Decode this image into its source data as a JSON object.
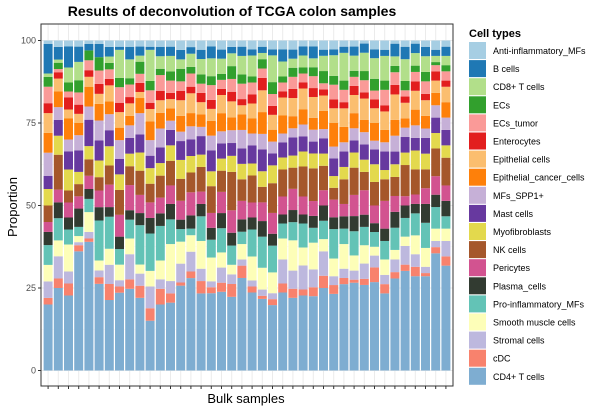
{
  "chart_data": {
    "type": "bar",
    "stacked": true,
    "title": "Results of deconvolution of TCGA colon samples",
    "xlabel": "Bulk samples",
    "ylabel": "Proportion",
    "ylim": [
      0,
      100
    ],
    "yticks": [
      0,
      25,
      50,
      75,
      100
    ],
    "grid": true,
    "legend_title": "Cell types",
    "legend_position": "right",
    "n_samples": 40,
    "series": [
      {
        "name": "CD4+ T cells",
        "color": "#7eadd1",
        "values": [
          20,
          26,
          25,
          39,
          39,
          26,
          22,
          25,
          26,
          24,
          16,
          21,
          22,
          27,
          28,
          25,
          26,
          26,
          23,
          30,
          26,
          23,
          22,
          26,
          24,
          25,
          25,
          27,
          26,
          28,
          29,
          28,
          30,
          25,
          29,
          32,
          30,
          30,
          38,
          34
        ]
      },
      {
        "name": "cDC",
        "color": "#f8826d",
        "values": [
          2,
          3,
          4,
          2,
          1,
          2,
          5,
          2,
          3,
          4,
          4,
          5,
          3,
          1,
          2,
          4,
          2,
          3,
          4,
          4,
          2,
          1,
          2,
          3,
          3,
          2,
          3,
          4,
          3,
          2,
          1,
          2,
          5,
          3,
          2,
          2,
          3,
          1,
          2,
          3
        ]
      },
      {
        "name": "Stromal cells",
        "color": "#bdb8de",
        "values": [
          5,
          7,
          4,
          1,
          2,
          2,
          6,
          2,
          8,
          4,
          7,
          3,
          4,
          6,
          6,
          4,
          2,
          5,
          3,
          2,
          2,
          2,
          2,
          8,
          6,
          8,
          6,
          8,
          3,
          3,
          3,
          5,
          4,
          3,
          4,
          6,
          4,
          2,
          2,
          5
        ]
      },
      {
        "name": "Smooth muscle cells",
        "color": "#fdfeb8",
        "values": [
          5,
          5,
          9,
          2,
          6,
          3,
          5,
          5,
          5,
          3,
          5,
          6,
          12,
          7,
          5,
          9,
          8,
          5,
          3,
          5,
          8,
          7,
          7,
          7,
          10,
          6,
          9,
          4,
          6,
          8,
          5,
          6,
          3,
          5,
          3,
          3,
          6,
          6,
          4,
          4
        ]
      },
      {
        "name": "Pro-inflammatory_MFs",
        "color": "#63c3b6",
        "values": [
          6,
          7,
          5,
          3,
          4,
          12,
          10,
          5,
          6,
          13,
          12,
          11,
          8,
          4,
          2,
          8,
          6,
          8,
          6,
          4,
          9,
          10,
          9,
          5,
          6,
          8,
          5,
          6,
          10,
          5,
          8,
          6,
          5,
          6,
          7,
          6,
          7,
          8,
          7,
          4
        ]
      },
      {
        "name": "Plasma_cells",
        "color": "#323b31",
        "values": [
          4,
          5,
          4,
          6,
          3,
          4,
          3,
          4,
          3,
          4,
          5,
          4,
          5,
          3,
          4,
          4,
          4,
          5,
          4,
          4,
          4,
          5,
          4,
          3,
          4,
          3,
          4,
          5,
          4,
          4,
          5,
          4,
          3,
          4,
          5,
          4,
          3,
          6,
          4,
          5
        ]
      },
      {
        "name": "Pericytes",
        "color": "#d25390",
        "values": [
          3,
          4,
          5,
          4,
          4,
          5,
          7,
          7,
          8,
          6,
          5,
          5,
          6,
          6,
          7,
          4,
          5,
          7,
          7,
          6,
          5,
          6,
          7,
          6,
          7,
          6,
          5,
          5,
          6,
          4,
          7,
          8,
          6,
          9,
          5,
          3,
          3,
          5,
          6,
          5
        ]
      },
      {
        "name": "NK cells",
        "color": "#a5572b",
        "values": [
          5,
          11,
          4,
          4,
          5,
          4,
          6,
          8,
          6,
          8,
          6,
          7,
          8,
          7,
          6,
          8,
          9,
          7,
          12,
          7,
          9,
          5,
          10,
          9,
          7,
          10,
          11,
          8,
          4,
          8,
          9,
          6,
          8,
          7,
          6,
          10,
          8,
          6,
          9,
          9
        ]
      },
      {
        "name": "Myofibroblasts",
        "color": "#e3d94d",
        "values": [
          5,
          6,
          7,
          4,
          4,
          5,
          6,
          5,
          4,
          6,
          5,
          4,
          5,
          6,
          5,
          4,
          5,
          4,
          5,
          5,
          4,
          5,
          6,
          4,
          4,
          5,
          5,
          4,
          4,
          4,
          5,
          4,
          6,
          3,
          4,
          4,
          6,
          5,
          5,
          4
        ]
      },
      {
        "name": "Mast cells",
        "color": "#67399f",
        "values": [
          4,
          5,
          6,
          7,
          8,
          6,
          5,
          5,
          5,
          6,
          4,
          5,
          5,
          6,
          5,
          6,
          7,
          5,
          4,
          5,
          6,
          7,
          4,
          5,
          6,
          5,
          4,
          5,
          6,
          5,
          4,
          5,
          5,
          6,
          4,
          5,
          4,
          5,
          5,
          5
        ]
      },
      {
        "name": "MFs_SPP1+",
        "color": "#c6b0d7",
        "values": [
          7,
          4,
          4,
          5,
          4,
          6,
          5,
          6,
          4,
          7,
          5,
          6,
          3,
          3,
          4,
          3,
          5,
          4,
          4,
          6,
          4,
          5,
          4,
          3,
          3,
          4,
          4,
          3,
          4,
          3,
          4,
          4,
          3,
          3,
          5,
          3,
          4,
          3,
          4,
          4
        ]
      },
      {
        "name": "Epithelial_cancer_cells",
        "color": "#fe800a",
        "values": [
          6,
          5,
          7,
          4,
          6,
          5,
          4,
          4,
          3,
          5,
          6,
          5,
          4,
          5,
          4,
          4,
          5,
          6,
          4,
          5,
          5,
          7,
          4,
          6,
          4,
          5,
          4,
          6,
          8,
          5,
          5,
          4,
          6,
          4,
          5,
          3,
          5,
          4,
          4,
          5
        ]
      },
      {
        "name": "Epithelial cells",
        "color": "#fbbe6f",
        "values": [
          6,
          4,
          3,
          3,
          3,
          3,
          5,
          5,
          4,
          2,
          4,
          4,
          3,
          5,
          6,
          4,
          4,
          6,
          5,
          3,
          5,
          7,
          5,
          6,
          6,
          7,
          7,
          5,
          5,
          6,
          6,
          7,
          5,
          6,
          8,
          5,
          6,
          5,
          4,
          5
        ]
      },
      {
        "name": "Enterocytes",
        "color": "#e21e1e",
        "values": [
          3,
          2,
          4,
          3,
          2,
          3,
          2,
          3,
          2,
          3,
          2,
          3,
          2,
          3,
          2,
          3,
          3,
          2,
          3,
          2,
          3,
          4,
          3,
          2,
          3,
          2,
          3,
          2,
          3,
          2,
          3,
          2,
          3,
          2,
          3,
          2,
          3,
          2,
          3,
          2
        ]
      },
      {
        "name": "ECs_tumor",
        "color": "#fa9a98",
        "values": [
          5,
          1,
          2,
          4,
          3,
          4,
          3,
          5,
          4,
          3,
          4,
          5,
          4,
          3,
          4,
          3,
          5,
          3,
          4,
          5,
          4,
          3,
          4,
          3,
          4,
          3,
          4,
          2,
          5,
          4,
          3,
          4,
          3,
          5,
          4,
          2,
          3,
          4,
          2,
          3
        ]
      },
      {
        "name": "ECs",
        "color": "#32a02d",
        "values": [
          3,
          2,
          3,
          4,
          3,
          4,
          2,
          3,
          2,
          4,
          3,
          2,
          3,
          4,
          2,
          3,
          3,
          2,
          4,
          3,
          2,
          3,
          4,
          2,
          3,
          2,
          3,
          4,
          3,
          3,
          2,
          3,
          4,
          3,
          2,
          3,
          2,
          3,
          1,
          2
        ]
      },
      {
        "name": "CD8+ T cells",
        "color": "#b2df8a",
        "values": [
          1,
          1,
          5,
          6,
          0,
          0,
          2,
          9,
          6,
          2,
          10,
          4,
          5,
          3,
          4,
          5,
          6,
          5,
          4,
          6,
          7,
          2,
          9,
          5,
          3,
          4,
          3,
          5,
          7,
          9,
          5,
          6,
          7,
          8,
          3,
          7,
          4,
          5,
          2,
          3
        ]
      },
      {
        "name": "B cells",
        "color": "#1f78b4",
        "values": [
          9,
          4,
          7,
          5,
          2,
          4,
          3,
          1,
          4,
          3,
          1,
          3,
          3,
          3,
          2,
          3,
          4,
          3,
          2,
          3,
          2,
          2,
          2,
          4,
          3,
          3,
          4,
          2,
          2,
          2,
          3,
          3,
          3,
          2,
          4,
          4,
          3,
          3,
          2,
          3
        ]
      },
      {
        "name": "Anti-inflammatory_MFs",
        "color": "#a6cee3",
        "values": [
          1,
          2,
          2,
          2,
          1,
          1,
          2,
          2,
          2,
          2,
          2,
          2,
          2,
          3,
          2,
          3,
          2,
          3,
          2,
          2,
          3,
          2,
          3,
          3,
          3,
          2,
          2,
          3,
          3,
          2,
          2,
          1,
          3,
          3,
          1,
          2,
          1,
          2,
          3,
          2
        ]
      }
    ]
  }
}
